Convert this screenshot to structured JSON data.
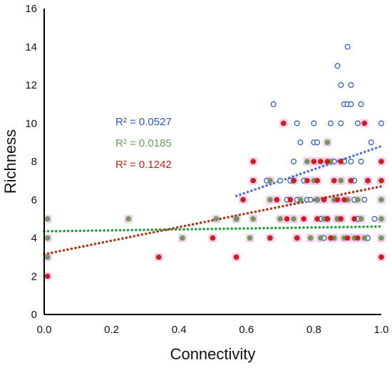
{
  "chart_data": {
    "type": "scatter",
    "xlabel": "Connectivity",
    "ylabel": "Richness",
    "xlim": [
      0,
      1.0
    ],
    "ylim": [
      0,
      16
    ],
    "x_ticks": [
      {
        "value": 0.0,
        "label": "0.0"
      },
      {
        "value": 0.2,
        "label": "0.2"
      },
      {
        "value": 0.4,
        "label": "0.4"
      },
      {
        "value": 0.6,
        "label": "0.6"
      },
      {
        "value": 0.8,
        "label": "0.8"
      },
      {
        "value": 1.0,
        "label": "1.0"
      }
    ],
    "y_ticks": [
      {
        "value": 0,
        "label": "0"
      },
      {
        "value": 2,
        "label": "2"
      },
      {
        "value": 4,
        "label": "4"
      },
      {
        "value": 6,
        "label": "6"
      },
      {
        "value": 8,
        "label": "8"
      },
      {
        "value": 10,
        "label": "10"
      },
      {
        "value": 12,
        "label": "12"
      },
      {
        "value": 14,
        "label": "14"
      },
      {
        "value": 16,
        "label": "16"
      }
    ],
    "grid": false,
    "series": [
      {
        "color": "#2a55c8",
        "marker": "hollow-circle",
        "r2_label": "R² = 0.0527",
        "trend": {
          "x": [
            0.57,
            1.0
          ],
          "y": [
            6.2,
            8.8
          ],
          "color": "#4a72d8"
        },
        "points": [
          [
            0.57,
            5
          ],
          [
            0.66,
            7
          ],
          [
            0.68,
            11
          ],
          [
            0.7,
            7
          ],
          [
            0.72,
            6
          ],
          [
            0.73,
            7
          ],
          [
            0.74,
            7
          ],
          [
            0.74,
            8
          ],
          [
            0.75,
            10
          ],
          [
            0.75,
            6
          ],
          [
            0.76,
            9
          ],
          [
            0.77,
            7
          ],
          [
            0.78,
            6
          ],
          [
            0.79,
            6
          ],
          [
            0.8,
            10
          ],
          [
            0.8,
            9
          ],
          [
            0.81,
            9
          ],
          [
            0.81,
            6
          ],
          [
            0.82,
            5
          ],
          [
            0.83,
            4
          ],
          [
            0.84,
            5
          ],
          [
            0.85,
            10
          ],
          [
            0.86,
            8
          ],
          [
            0.87,
            5
          ],
          [
            0.87,
            13
          ],
          [
            0.88,
            12
          ],
          [
            0.88,
            10
          ],
          [
            0.89,
            8
          ],
          [
            0.89,
            11
          ],
          [
            0.9,
            11
          ],
          [
            0.9,
            14
          ],
          [
            0.91,
            12
          ],
          [
            0.91,
            11
          ],
          [
            0.91,
            8
          ],
          [
            0.92,
            7
          ],
          [
            0.92,
            6
          ],
          [
            0.93,
            10
          ],
          [
            0.93,
            5
          ],
          [
            0.94,
            11
          ],
          [
            0.94,
            8
          ],
          [
            0.95,
            6
          ],
          [
            0.96,
            4
          ],
          [
            0.97,
            9
          ],
          [
            0.98,
            5
          ],
          [
            1.0,
            10
          ]
        ]
      },
      {
        "color": "#6e9a5c",
        "marker": "filled-circle",
        "r2_label": "R² = 0.0185",
        "trend": {
          "x": [
            0.0,
            1.0
          ],
          "y": [
            4.35,
            4.6
          ],
          "color": "#22a03a"
        },
        "points": [
          [
            0.01,
            5
          ],
          [
            0.01,
            4
          ],
          [
            0.01,
            3
          ],
          [
            0.25,
            5
          ],
          [
            0.41,
            4
          ],
          [
            0.51,
            5
          ],
          [
            0.57,
            5
          ],
          [
            0.61,
            4
          ],
          [
            0.62,
            5
          ],
          [
            0.67,
            6
          ],
          [
            0.67,
            7
          ],
          [
            0.7,
            5
          ],
          [
            0.74,
            5
          ],
          [
            0.75,
            4
          ],
          [
            0.76,
            6
          ],
          [
            0.78,
            8
          ],
          [
            0.79,
            4
          ],
          [
            0.8,
            7
          ],
          [
            0.81,
            6
          ],
          [
            0.82,
            4
          ],
          [
            0.83,
            5
          ],
          [
            0.84,
            9
          ],
          [
            0.85,
            8
          ],
          [
            0.86,
            6
          ],
          [
            0.86,
            4
          ],
          [
            0.87,
            5
          ],
          [
            0.88,
            7
          ],
          [
            0.88,
            5
          ],
          [
            0.89,
            4
          ],
          [
            0.9,
            6
          ],
          [
            0.92,
            4
          ],
          [
            0.93,
            6
          ],
          [
            0.94,
            5
          ],
          [
            0.95,
            4
          ],
          [
            0.96,
            7
          ],
          [
            1.0,
            6
          ],
          [
            1.0,
            5
          ],
          [
            1.0,
            4
          ]
        ]
      },
      {
        "color": "#c82020",
        "marker": "filled-circle",
        "r2_label": "R² = 0.1242",
        "trend": {
          "x": [
            0.0,
            1.0
          ],
          "y": [
            3.15,
            6.7
          ],
          "color": "#b03a1e"
        },
        "points": [
          [
            0.01,
            2
          ],
          [
            0.34,
            3
          ],
          [
            0.5,
            4
          ],
          [
            0.57,
            3
          ],
          [
            0.59,
            6
          ],
          [
            0.62,
            8
          ],
          [
            0.62,
            7
          ],
          [
            0.67,
            4
          ],
          [
            0.69,
            6
          ],
          [
            0.71,
            10
          ],
          [
            0.72,
            5
          ],
          [
            0.73,
            6
          ],
          [
            0.74,
            7
          ],
          [
            0.75,
            4
          ],
          [
            0.77,
            5
          ],
          [
            0.78,
            7
          ],
          [
            0.8,
            8
          ],
          [
            0.81,
            7
          ],
          [
            0.81,
            5
          ],
          [
            0.82,
            8
          ],
          [
            0.83,
            6
          ],
          [
            0.84,
            8
          ],
          [
            0.84,
            5
          ],
          [
            0.85,
            4
          ],
          [
            0.86,
            7
          ],
          [
            0.87,
            6
          ],
          [
            0.88,
            8
          ],
          [
            0.88,
            5
          ],
          [
            0.89,
            6
          ],
          [
            0.9,
            4
          ],
          [
            0.91,
            7
          ],
          [
            0.92,
            5
          ],
          [
            0.93,
            4
          ],
          [
            0.95,
            10
          ],
          [
            0.96,
            7
          ],
          [
            1.0,
            8
          ],
          [
            1.0,
            7
          ],
          [
            1.0,
            3
          ]
        ]
      }
    ]
  }
}
